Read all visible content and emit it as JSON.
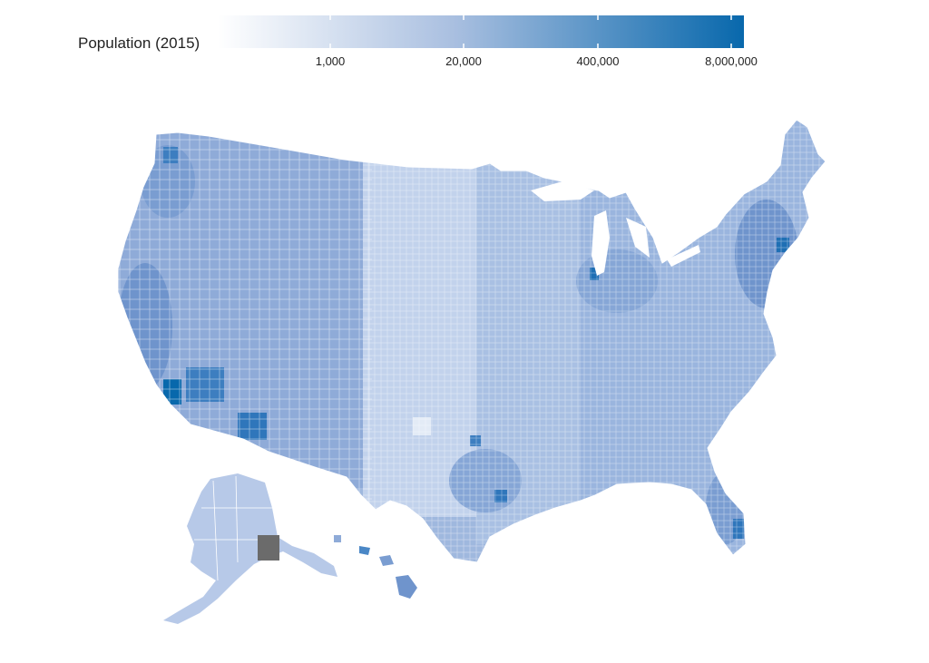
{
  "legend": {
    "title": "Population (2015)",
    "color_low": "#ffffff",
    "color_high": "#0868ac",
    "scale": "log",
    "ticks": [
      "1,000",
      "20,000",
      "400,000",
      "8,000,000"
    ]
  },
  "map": {
    "subject": "US county population choropleth",
    "missing_color": "#6b6b6b",
    "border_color": "#ffffff"
  }
}
